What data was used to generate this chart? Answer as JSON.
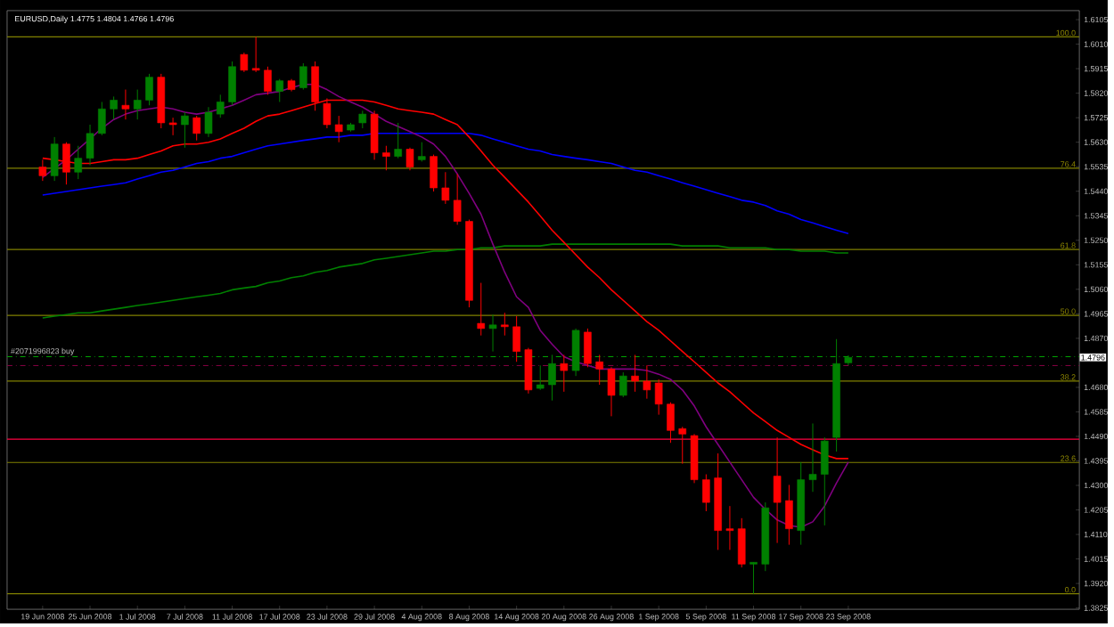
{
  "chart_data": {
    "type": "candlestick",
    "title": "EURUSD,Daily  1.4775 1.4804 1.4766 1.4796",
    "categories": [
      "19 Jun 2008",
      null,
      null,
      null,
      "25 Jun 2008",
      null,
      null,
      null,
      "1 Jul 2008",
      null,
      null,
      null,
      "7 Jul 2008",
      null,
      null,
      null,
      "11 Jul 2008",
      null,
      null,
      null,
      "17 Jul 2008",
      null,
      null,
      null,
      "23 Jul 2008",
      null,
      null,
      null,
      "29 Jul 2008",
      null,
      null,
      null,
      "4 Aug 2008",
      null,
      null,
      null,
      "8 Aug 2008",
      null,
      null,
      null,
      "14 Aug 2008",
      null,
      null,
      null,
      "20 Aug 2008",
      null,
      null,
      null,
      "26 Aug 2008",
      null,
      null,
      null,
      "1 Sep 2008",
      null,
      null,
      null,
      "5 Sep 2008",
      null,
      null,
      null,
      "11 Sep 2008",
      null,
      null,
      null,
      "17 Sep 2008",
      null,
      null,
      null,
      "23 Sep 2008"
    ],
    "ohlc": [
      [
        1.5534,
        1.5562,
        1.548,
        1.55
      ],
      [
        1.55,
        1.565,
        1.548,
        1.5623
      ],
      [
        1.5623,
        1.563,
        1.5466,
        1.5514
      ],
      [
        1.5514,
        1.5616,
        1.5487,
        1.5568
      ],
      [
        1.5568,
        1.5698,
        1.5541,
        1.5664
      ],
      [
        1.5664,
        1.5786,
        1.5657,
        1.5759
      ],
      [
        1.5759,
        1.5807,
        1.5718,
        1.5793
      ],
      [
        1.5773,
        1.5834,
        1.5718,
        1.5759
      ],
      [
        1.5759,
        1.5834,
        1.5718,
        1.5793
      ],
      [
        1.5793,
        1.5895,
        1.5773,
        1.5882
      ],
      [
        1.5882,
        1.5895,
        1.5684,
        1.5705
      ],
      [
        1.5705,
        1.5725,
        1.5657,
        1.5698
      ],
      [
        1.5698,
        1.5746,
        1.5609,
        1.5732
      ],
      [
        1.5725,
        1.5732,
        1.5637,
        1.5664
      ],
      [
        1.5664,
        1.5766,
        1.565,
        1.5746
      ],
      [
        1.5739,
        1.5814,
        1.5725,
        1.5786
      ],
      [
        1.5786,
        1.5943,
        1.5773,
        1.5923
      ],
      [
        1.597,
        1.5977,
        1.5902,
        1.5909
      ],
      [
        1.5916,
        1.6038,
        1.5902,
        1.5909
      ],
      [
        1.5909,
        1.5923,
        1.5814,
        1.5827
      ],
      [
        1.5827,
        1.5875,
        1.5786,
        1.5868
      ],
      [
        1.5868,
        1.5875,
        1.5827,
        1.5834
      ],
      [
        1.5841,
        1.5936,
        1.5834,
        1.5923
      ],
      [
        1.5923,
        1.5943,
        1.5752,
        1.5786
      ],
      [
        1.578,
        1.58,
        1.5684,
        1.5698
      ],
      [
        1.5698,
        1.5732,
        1.563,
        1.5671
      ],
      [
        1.5677,
        1.5705,
        1.5671,
        1.5698
      ],
      [
        1.5705,
        1.5752,
        1.5684,
        1.5739
      ],
      [
        1.5739,
        1.5752,
        1.5562,
        1.5589
      ],
      [
        1.5589,
        1.5616,
        1.5521,
        1.5575
      ],
      [
        1.5575,
        1.5705,
        1.5568,
        1.5603
      ],
      [
        1.5603,
        1.5609,
        1.5521,
        1.5534
      ],
      [
        1.5562,
        1.563,
        1.5555,
        1.5575
      ],
      [
        1.5575,
        1.5582,
        1.5439,
        1.5453
      ],
      [
        1.5453,
        1.5514,
        1.5391,
        1.5405
      ],
      [
        1.5405,
        1.5507,
        1.531,
        1.5323
      ],
      [
        1.5323,
        1.533,
        1.499,
        1.5017
      ],
      [
        1.4928,
        1.5085,
        1.4881,
        1.4908
      ],
      [
        1.4908,
        1.4962,
        1.4819,
        1.4922
      ],
      [
        1.4922,
        1.4969,
        1.4881,
        1.4915
      ],
      [
        1.4915,
        1.4956,
        1.4779,
        1.4819
      ],
      [
        1.4826,
        1.4833,
        1.4656,
        1.467
      ],
      [
        1.4676,
        1.4765,
        1.467,
        1.469
      ],
      [
        1.469,
        1.4806,
        1.4629,
        1.4772
      ],
      [
        1.4772,
        1.4806,
        1.4663,
        1.4745
      ],
      [
        1.4745,
        1.4908,
        1.4724,
        1.4901
      ],
      [
        1.4894,
        1.4908,
        1.4758,
        1.4772
      ],
      [
        1.4779,
        1.4806,
        1.469,
        1.4751
      ],
      [
        1.4751,
        1.4758,
        1.4568,
        1.4649
      ],
      [
        1.4649,
        1.4738,
        1.4642,
        1.4724
      ],
      [
        1.4724,
        1.4806,
        1.4663,
        1.4704
      ],
      [
        1.4704,
        1.4765,
        1.4636,
        1.467
      ],
      [
        1.4697,
        1.4711,
        1.4574,
        1.4615
      ],
      [
        1.4615,
        1.4622,
        1.4465,
        1.4513
      ],
      [
        1.452,
        1.4527,
        1.4384,
        1.4499
      ],
      [
        1.4493,
        1.4499,
        1.4309,
        1.4322
      ],
      [
        1.4322,
        1.4343,
        1.42,
        1.4234
      ],
      [
        1.4329,
        1.4424,
        1.405,
        1.4125
      ],
      [
        1.4132,
        1.422,
        1.405,
        1.4125
      ],
      [
        1.4132,
        1.4173,
        1.3982,
        1.3995
      ],
      [
        1.3995,
        1.4002,
        1.388,
        1.4002
      ],
      [
        1.3995,
        1.4234,
        1.3968,
        1.4213
      ],
      [
        1.4336,
        1.4486,
        1.4077,
        1.4234
      ],
      [
        1.4241,
        1.4302,
        1.407,
        1.4132
      ],
      [
        1.4125,
        1.439,
        1.407,
        1.4322
      ],
      [
        1.4322,
        1.454,
        1.4275,
        1.4343
      ],
      [
        1.4343,
        1.4486,
        1.4145,
        1.4472
      ],
      [
        1.4486,
        1.4867,
        1.4431,
        1.4772
      ],
      [
        1.4775,
        1.4804,
        1.4766,
        1.4796
      ]
    ],
    "colors": [
      "#ff0000",
      "#008000",
      "#ff0000",
      "#008000",
      "#008000",
      "#008000",
      "#008000",
      "#ff0000",
      "#008000",
      "#008000",
      "#ff0000",
      "#ff0000",
      "#008000",
      "#ff0000",
      "#008000",
      "#008000",
      "#008000",
      "#ff0000",
      "#ff0000",
      "#ff0000",
      "#008000",
      "#ff0000",
      "#008000",
      "#ff0000",
      "#ff0000",
      "#ff0000",
      "#008000",
      "#008000",
      "#ff0000",
      "#ff0000",
      "#008000",
      "#ff0000",
      "#008000",
      "#ff0000",
      "#ff0000",
      "#ff0000",
      "#ff0000",
      "#ff0000",
      "#008000",
      "#ff0000",
      "#ff0000",
      "#ff0000",
      "#008000",
      "#008000",
      "#ff0000",
      "#008000",
      "#ff0000",
      "#ff0000",
      "#ff0000",
      "#008000",
      "#ff0000",
      "#ff0000",
      "#ff0000",
      "#ff0000",
      "#ff0000",
      "#ff0000",
      "#ff0000",
      "#ff0000",
      "#ff0000",
      "#ff0000",
      "#008000",
      "#008000",
      "#ff0000",
      "#ff0000",
      "#008000",
      "#008000",
      "#008000",
      "#008000",
      "#008000"
    ],
    "series": [
      {
        "type": "line",
        "color": "#008000",
        "values": [
          1.4949,
          1.4956,
          1.4962,
          1.4969,
          1.4969,
          1.4976,
          1.4983,
          1.499,
          1.4997,
          1.5003,
          1.501,
          1.5017,
          1.5024,
          1.5031,
          1.5037,
          1.5044,
          1.5058,
          1.5065,
          1.5071,
          1.5085,
          1.5092,
          1.5105,
          1.5112,
          1.5126,
          1.5133,
          1.5146,
          1.5153,
          1.516,
          1.5174,
          1.518,
          1.5187,
          1.5194,
          1.5201,
          1.5208,
          1.5208,
          1.5214,
          1.5214,
          1.5221,
          1.5221,
          1.5228,
          1.5228,
          1.5228,
          1.5228,
          1.5235,
          1.5235,
          1.5235,
          1.5235,
          1.5235,
          1.5235,
          1.5235,
          1.5235,
          1.5235,
          1.5235,
          1.5235,
          1.5228,
          1.5228,
          1.5228,
          1.5228,
          1.5221,
          1.5221,
          1.5221,
          1.5221,
          1.5214,
          1.5214,
          1.5208,
          1.5208,
          1.5208,
          1.5201,
          1.5201
        ]
      },
      {
        "type": "line",
        "color": "#0000ff",
        "values": [
          1.5425,
          1.5432,
          1.5439,
          1.5446,
          1.5453,
          1.546,
          1.5466,
          1.5473,
          1.5487,
          1.55,
          1.5514,
          1.5521,
          1.5534,
          1.5548,
          1.5555,
          1.5568,
          1.5575,
          1.5589,
          1.5603,
          1.5616,
          1.5623,
          1.563,
          1.5637,
          1.5643,
          1.565,
          1.565,
          1.5657,
          1.5657,
          1.5664,
          1.5664,
          1.5664,
          1.5664,
          1.5664,
          1.5664,
          1.5664,
          1.5664,
          1.5664,
          1.5657,
          1.5643,
          1.563,
          1.5616,
          1.5603,
          1.5596,
          1.5582,
          1.5575,
          1.5568,
          1.5562,
          1.5555,
          1.5548,
          1.5534,
          1.5521,
          1.5514,
          1.55,
          1.5487,
          1.5473,
          1.546,
          1.5446,
          1.5432,
          1.5419,
          1.5405,
          1.5398,
          1.5385,
          1.5364,
          1.5351,
          1.533,
          1.5317,
          1.5303,
          1.5289,
          1.5276
        ]
      },
      {
        "type": "line",
        "color": "#ff0000",
        "values": [
          1.5568,
          1.5562,
          1.5555,
          1.5548,
          1.5548,
          1.5555,
          1.5562,
          1.5562,
          1.5568,
          1.5582,
          1.5596,
          1.5616,
          1.5623,
          1.5623,
          1.563,
          1.5643,
          1.5664,
          1.5684,
          1.5711,
          1.5732,
          1.5739,
          1.5752,
          1.5766,
          1.578,
          1.5793,
          1.5793,
          1.5793,
          1.5793,
          1.5786,
          1.5773,
          1.5759,
          1.5752,
          1.5746,
          1.5739,
          1.5718,
          1.5698,
          1.565,
          1.5596,
          1.5541,
          1.5494,
          1.5446,
          1.5398,
          1.5344,
          1.5289,
          1.5242,
          1.5194,
          1.5146,
          1.5105,
          1.5058,
          1.5017,
          1.4976,
          1.4935,
          1.4901,
          1.486,
          1.4819,
          1.4779,
          1.4738,
          1.4697,
          1.4663,
          1.4622,
          1.4581,
          1.4547,
          1.4513,
          1.4486,
          1.4459,
          1.4438,
          1.4418,
          1.4404,
          1.4404
        ]
      },
      {
        "type": "line",
        "color": "#800080",
        "values": [
          1.5494,
          1.5528,
          1.5562,
          1.5603,
          1.5643,
          1.5684,
          1.5718,
          1.5739,
          1.5752,
          1.5759,
          1.5766,
          1.5759,
          1.5746,
          1.5739,
          1.5746,
          1.5759,
          1.5773,
          1.5793,
          1.5814,
          1.582,
          1.5827,
          1.5841,
          1.5854,
          1.5854,
          1.5834,
          1.5807,
          1.5786,
          1.5766,
          1.5739,
          1.5711,
          1.5691,
          1.5671,
          1.565,
          1.5623,
          1.5575,
          1.5507,
          1.5432,
          1.5351,
          1.5235,
          1.5126,
          1.5031,
          1.499,
          1.4901,
          1.4847,
          1.4799,
          1.4779,
          1.4765,
          1.4751,
          1.4751,
          1.4751,
          1.4751,
          1.4745,
          1.4731,
          1.4711,
          1.467,
          1.4608,
          1.4527,
          1.4459,
          1.439,
          1.4322,
          1.4254,
          1.4207,
          1.4166,
          1.4145,
          1.4138,
          1.4159,
          1.422,
          1.4309,
          1.439
        ]
      }
    ],
    "ylim": [
      1.382,
      1.614
    ],
    "yticks": [
      1.3825,
      {
        "value": 1.392,
        "label": "1.3920"
      },
      1.4015,
      {
        "value": 1.411,
        "label": "1.4110"
      },
      1.4205,
      {
        "value": 1.43,
        "label": "1.4300"
      },
      1.4395,
      {
        "value": 1.449,
        "label": "1.4490"
      },
      1.4585,
      {
        "value": 1.468,
        "label": "1.4680"
      },
      {
        "value": 1.487,
        "label": "1.4870"
      },
      1.4965,
      {
        "value": 1.506,
        "label": "1.5060"
      },
      1.5155,
      {
        "value": 1.525,
        "label": "1.5250"
      },
      1.5345,
      {
        "value": 1.544,
        "label": "1.5440"
      },
      1.5535,
      {
        "value": 1.563,
        "label": "1.5630"
      },
      1.5725,
      {
        "value": 1.582,
        "label": "1.5820"
      },
      1.5915,
      {
        "value": 1.601,
        "label": "1.6010"
      },
      1.6105
    ],
    "ref_lines": [
      {
        "axis": "y",
        "value": 1.6038,
        "color": "#808000"
      },
      {
        "axis": "y",
        "value": 1.5529,
        "color": "#808000"
      },
      {
        "axis": "y",
        "value": 1.5214,
        "color": "#808000"
      },
      {
        "axis": "y",
        "value": 1.4959,
        "color": "#808000"
      },
      {
        "axis": "y",
        "value": 1.4704,
        "color": "#808000"
      },
      {
        "axis": "y",
        "value": 1.4389,
        "color": "#808000"
      },
      {
        "axis": "y",
        "value": 1.388,
        "color": "#808000"
      },
      {
        "axis": "y",
        "value": 1.4799,
        "label": "#2071996823 buy",
        "color": "#00a000",
        "line_style": "dashed"
      },
      {
        "axis": "y",
        "value": 1.4765,
        "color": "#800040",
        "line_style": "dashed"
      },
      {
        "axis": "y",
        "value": 1.4479,
        "color": "#ff0040"
      }
    ],
    "annotations": [
      "1.4796",
      {
        "text": "100.0",
        "y": 1.6038
      },
      {
        "text": "76.4",
        "y": 1.5529
      },
      {
        "text": "61.8",
        "y": 1.5214
      },
      {
        "text": "50.0",
        "y": 1.4959
      },
      {
        "text": "38.2",
        "y": 1.4704
      },
      {
        "text": "23.6",
        "y": 1.4389
      },
      {
        "text": "0.0",
        "y": 1.388
      }
    ]
  }
}
